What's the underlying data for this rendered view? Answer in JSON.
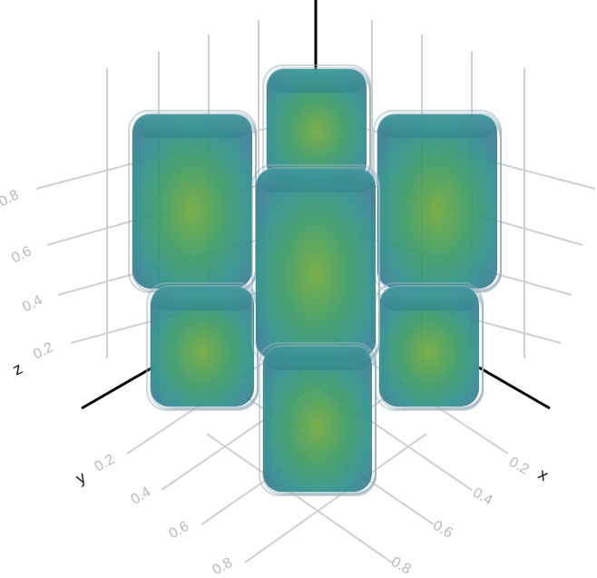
{
  "chart_data": {
    "type": "3d-volume",
    "grid": true,
    "axes": {
      "x": {
        "label": "x",
        "ticks": [
          "0.2",
          "0.4",
          "0.6",
          "0.8"
        ]
      },
      "y": {
        "label": "y",
        "ticks": [
          "0.2",
          "0.4",
          "0.6",
          "0.8"
        ]
      },
      "z": {
        "label": "z",
        "ticks": [
          "0.2",
          "0.4",
          "0.6",
          "0.8"
        ]
      }
    },
    "colors": {
      "rim": "#2f8f9a",
      "body": "#2f9d8c",
      "core": "#6aa83b",
      "edge": "#9ab3bf",
      "grid": "#d0d0d0",
      "axis": "#000000"
    }
  }
}
